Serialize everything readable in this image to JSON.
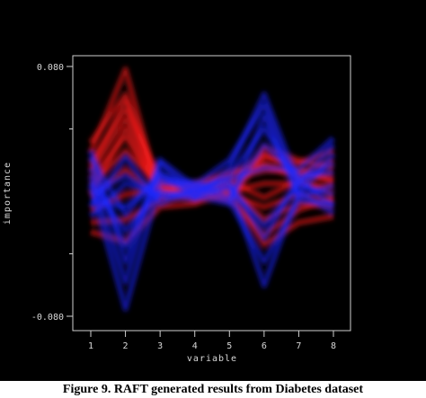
{
  "chart_data": {
    "type": "line",
    "title": "",
    "xlabel": "variable",
    "ylabel": "importance",
    "x": [
      1,
      2,
      3,
      4,
      5,
      6,
      7,
      8
    ],
    "xlim": [
      0.5,
      8.5
    ],
    "ylim": [
      -0.086,
      0.082
    ],
    "yticks": [
      {
        "value": 0.08,
        "label": "0.080"
      },
      {
        "value": -0.08,
        "label": "-0.080"
      }
    ],
    "extra_yticks": [
      0.04,
      -0.04
    ],
    "grid": false,
    "series": [
      {
        "color": "#ff1e1e",
        "values": [
          0.025,
          0.078,
          -0.002,
          0.005,
          0.01,
          0.022,
          0.018,
          0.026
        ]
      },
      {
        "color": "#ff1e1e",
        "values": [
          0.031,
          0.062,
          0.003,
          0.002,
          -0.004,
          0.028,
          0.02,
          0.015
        ]
      },
      {
        "color": "#ff1e1e",
        "values": [
          0.018,
          0.052,
          0.006,
          0.004,
          0.012,
          0.016,
          0.009,
          0.012
        ]
      },
      {
        "color": "#ff1e1e",
        "values": [
          0.012,
          0.046,
          0.001,
          -0.003,
          0.008,
          0.013,
          0.014,
          0.006
        ]
      },
      {
        "color": "#ff1e1e",
        "values": [
          0.008,
          0.035,
          -0.001,
          0.001,
          0.0,
          0.005,
          0.005,
          0.003
        ]
      },
      {
        "color": "#ff1e1e",
        "values": [
          0.004,
          0.026,
          0.004,
          -0.002,
          0.006,
          -0.004,
          0.007,
          -0.002
        ]
      },
      {
        "color": "#ff1e1e",
        "values": [
          -0.004,
          0.014,
          -0.004,
          0.003,
          -0.002,
          -0.01,
          -0.002,
          -0.006
        ]
      },
      {
        "color": "#ff1e1e",
        "values": [
          -0.012,
          -0.002,
          0.002,
          -0.006,
          0.003,
          -0.018,
          -0.008,
          -0.01
        ]
      },
      {
        "color": "#ff1e1e",
        "values": [
          -0.02,
          -0.018,
          -0.006,
          -0.002,
          -0.005,
          -0.028,
          -0.012,
          -0.004
        ]
      },
      {
        "color": "#ff1e1e",
        "values": [
          -0.026,
          -0.032,
          -0.01,
          -0.008,
          0.0,
          -0.034,
          -0.02,
          -0.016
        ]
      },
      {
        "color": "#ff1e1e",
        "values": [
          -0.002,
          0.04,
          0.0,
          0.002,
          0.004,
          0.018,
          0.01,
          0.008
        ]
      },
      {
        "color": "#ff1e1e",
        "values": [
          0.015,
          0.058,
          0.002,
          0.0,
          -0.006,
          0.024,
          0.012,
          0.02
        ]
      },
      {
        "color": "#1e28ff",
        "values": [
          0.022,
          -0.015,
          0.012,
          -0.004,
          0.015,
          0.062,
          0.005,
          0.03
        ]
      },
      {
        "color": "#1e28ff",
        "values": [
          0.015,
          -0.035,
          0.01,
          0.004,
          0.02,
          0.055,
          -0.002,
          0.024
        ]
      },
      {
        "color": "#1e28ff",
        "values": [
          0.01,
          -0.058,
          0.018,
          -0.002,
          0.01,
          0.04,
          0.006,
          0.018
        ]
      },
      {
        "color": "#1e28ff",
        "values": [
          0.004,
          -0.075,
          0.005,
          0.006,
          -0.004,
          0.03,
          0.01,
          0.012
        ]
      },
      {
        "color": "#1e28ff",
        "values": [
          -0.002,
          0.01,
          -0.004,
          0.0,
          0.002,
          -0.022,
          0.004,
          -0.002
        ]
      },
      {
        "color": "#1e28ff",
        "values": [
          -0.01,
          0.022,
          -0.008,
          0.002,
          -0.006,
          -0.045,
          -0.006,
          -0.008
        ]
      },
      {
        "color": "#1e28ff",
        "values": [
          -0.016,
          0.005,
          -0.002,
          -0.005,
          0.004,
          -0.06,
          0.0,
          -0.014
        ]
      },
      {
        "color": "#1e28ff",
        "values": [
          0.026,
          -0.045,
          0.02,
          0.003,
          0.008,
          0.015,
          0.014,
          0.034
        ]
      },
      {
        "color": "#1e28ff",
        "values": [
          0.006,
          -0.025,
          0.0,
          -0.003,
          -0.008,
          0.048,
          -0.004,
          0.004
        ]
      },
      {
        "color": "#1e28ff",
        "values": [
          -0.006,
          -0.01,
          0.008,
          0.001,
          0.006,
          -0.03,
          0.008,
          -0.01
        ]
      }
    ]
  },
  "caption": "Figure 9. RAFT generated results from Diabetes dataset"
}
